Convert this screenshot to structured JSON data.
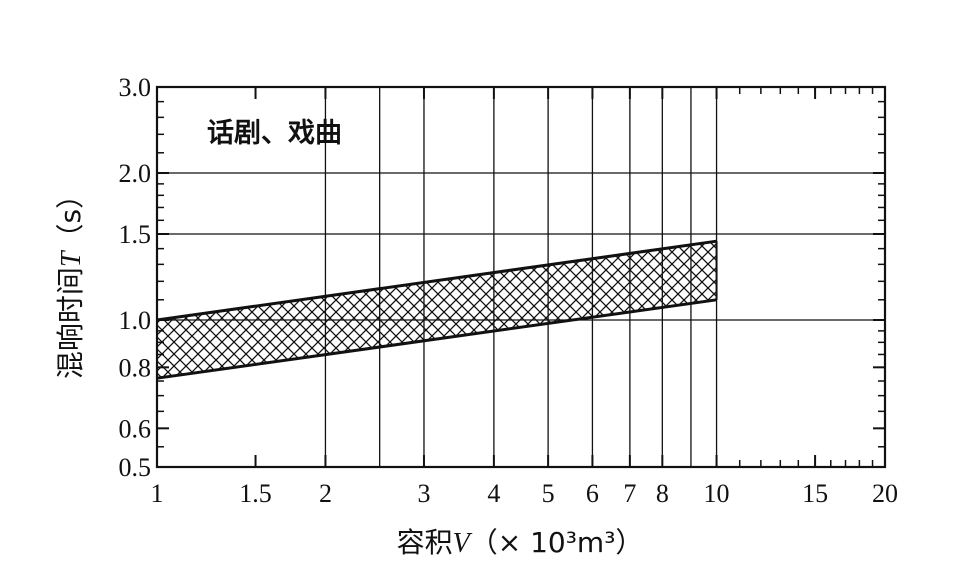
{
  "chart_data": {
    "type": "area",
    "title": "",
    "annotation": "话剧、戏曲",
    "xlabel_prefix": "容积",
    "xlabel_var": "V",
    "xlabel_unit": "（× 10³m³）",
    "ylabel_prefix": "混响时间",
    "ylabel_var": "T",
    "ylabel_unit": "（s）",
    "x_scale": "log",
    "y_scale": "log",
    "xlim": [
      1,
      20
    ],
    "ylim": [
      0.5,
      3.0
    ],
    "x_ticks": [
      1,
      1.5,
      2,
      3,
      4,
      5,
      6,
      7,
      8,
      10,
      15,
      20
    ],
    "x_tick_labels": [
      "1",
      "1.5",
      "2",
      "3",
      "4",
      "5",
      "6",
      "7",
      "8",
      "10",
      "15",
      "20"
    ],
    "y_ticks": [
      0.5,
      0.6,
      0.8,
      1.0,
      1.5,
      2.0,
      3.0
    ],
    "y_tick_labels": [
      "0.5",
      "0.6",
      "0.8",
      "1.0",
      "1.5",
      "2.0",
      "3.0"
    ],
    "vertical_gridlines": [
      2,
      2.5,
      3,
      4,
      5,
      6,
      7,
      8,
      9,
      10
    ],
    "horizontal_gridlines": [
      1.0,
      1.5,
      2.0
    ],
    "series": [
      {
        "name": "",
        "x": [
          1,
          10
        ],
        "upper": [
          1.0,
          1.45
        ],
        "lower": [
          0.76,
          1.1
        ]
      }
    ],
    "fill_pattern": "crosshatch",
    "grid": true
  }
}
